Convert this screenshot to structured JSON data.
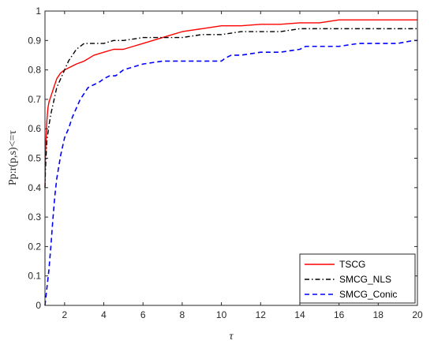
{
  "chart_data": {
    "type": "line",
    "title": "",
    "xlabel": "τ",
    "ylabel": "Pp:r(p,s)<=τ",
    "xlim": [
      1,
      20
    ],
    "ylim": [
      0,
      1
    ],
    "xticks": [
      2,
      4,
      6,
      8,
      10,
      12,
      14,
      16,
      18,
      20
    ],
    "yticks": [
      0,
      0.1,
      0.2,
      0.3,
      0.4,
      0.5,
      0.6,
      0.7,
      0.8,
      0.9,
      1
    ],
    "xtick_labels": [
      "2",
      "4",
      "6",
      "8",
      "10",
      "12",
      "14",
      "16",
      "18",
      "20"
    ],
    "ytick_labels": [
      "0",
      "0.1",
      "0.2",
      "0.3",
      "0.4",
      "0.5",
      "0.6",
      "0.7",
      "0.8",
      "0.9",
      "1"
    ],
    "grid": false,
    "legend_position": "bottom-right",
    "series": [
      {
        "name": "TSCG",
        "color": "#ff0000",
        "dash": "solid",
        "x": [
          1.0,
          1.02,
          1.05,
          1.1,
          1.15,
          1.2,
          1.3,
          1.4,
          1.5,
          1.6,
          1.7,
          1.8,
          2.0,
          2.3,
          2.6,
          3.0,
          3.5,
          4.0,
          4.5,
          5.0,
          5.5,
          6.0,
          6.5,
          7.0,
          7.5,
          8.0,
          9.0,
          10.0,
          11.0,
          12.0,
          13.0,
          14.0,
          15.0,
          16.0,
          17.0,
          18.0,
          19.0,
          20.0
        ],
        "y": [
          0.4,
          0.5,
          0.56,
          0.63,
          0.67,
          0.69,
          0.71,
          0.73,
          0.75,
          0.77,
          0.78,
          0.79,
          0.8,
          0.81,
          0.82,
          0.83,
          0.85,
          0.86,
          0.87,
          0.87,
          0.88,
          0.89,
          0.9,
          0.91,
          0.92,
          0.93,
          0.94,
          0.95,
          0.95,
          0.955,
          0.955,
          0.96,
          0.96,
          0.97,
          0.97,
          0.97,
          0.97,
          0.97
        ]
      },
      {
        "name": "SMCG_NLS",
        "color": "#000000",
        "dash": "dashdot",
        "x": [
          1.0,
          1.02,
          1.05,
          1.1,
          1.2,
          1.3,
          1.4,
          1.5,
          1.6,
          1.8,
          2.0,
          2.2,
          2.4,
          2.6,
          2.8,
          3.0,
          3.5,
          4.0,
          4.5,
          5.0,
          6.0,
          7.0,
          8.0,
          9.0,
          10.0,
          11.0,
          12.0,
          13.0,
          14.0,
          15.0,
          16.0,
          17.0,
          18.0,
          19.0,
          20.0
        ],
        "y": [
          0.4,
          0.45,
          0.5,
          0.56,
          0.61,
          0.65,
          0.68,
          0.71,
          0.74,
          0.77,
          0.8,
          0.83,
          0.85,
          0.87,
          0.88,
          0.89,
          0.89,
          0.89,
          0.9,
          0.9,
          0.91,
          0.91,
          0.91,
          0.92,
          0.92,
          0.93,
          0.93,
          0.93,
          0.94,
          0.94,
          0.94,
          0.94,
          0.94,
          0.94,
          0.94
        ]
      },
      {
        "name": "SMCG_Conic",
        "color": "#0000ff",
        "dash": "dashed",
        "x": [
          1.0,
          1.05,
          1.1,
          1.2,
          1.3,
          1.4,
          1.5,
          1.6,
          1.7,
          1.8,
          1.9,
          2.0,
          2.2,
          2.4,
          2.6,
          2.8,
          3.0,
          3.2,
          3.5,
          3.8,
          4.0,
          4.3,
          4.6,
          5.0,
          5.5,
          6.0,
          7.0,
          8.0,
          9.0,
          10.0,
          10.2,
          10.5,
          11.0,
          12.0,
          13.0,
          14.0,
          14.3,
          15.0,
          16.0,
          17.0,
          18.0,
          19.0,
          19.8,
          20.0
        ],
        "y": [
          0.0,
          0.03,
          0.06,
          0.12,
          0.2,
          0.29,
          0.37,
          0.43,
          0.47,
          0.51,
          0.54,
          0.57,
          0.6,
          0.64,
          0.67,
          0.7,
          0.72,
          0.74,
          0.75,
          0.76,
          0.77,
          0.78,
          0.78,
          0.8,
          0.81,
          0.82,
          0.83,
          0.83,
          0.83,
          0.83,
          0.84,
          0.85,
          0.85,
          0.86,
          0.86,
          0.87,
          0.88,
          0.88,
          0.88,
          0.89,
          0.89,
          0.89,
          0.9,
          0.9
        ]
      }
    ]
  }
}
